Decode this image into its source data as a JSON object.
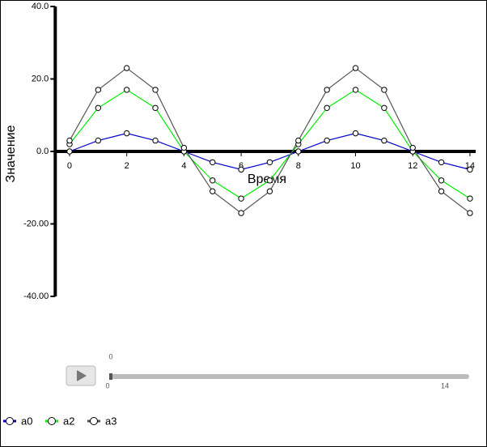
{
  "chart_data": {
    "type": "line",
    "x_label": "Время",
    "y_label": "Значение",
    "x": [
      0,
      1,
      2,
      3,
      4,
      5,
      6,
      7,
      8,
      9,
      10,
      11,
      12,
      13,
      14
    ],
    "series": [
      {
        "name": "a0",
        "color": "#0000cc",
        "values": [
          0,
          3,
          5,
          3,
          0,
          -3,
          -5,
          -3,
          0,
          3,
          5,
          3,
          0,
          -3,
          -5
        ]
      },
      {
        "name": "a2",
        "color": "#00ee00",
        "values": [
          2,
          12,
          17,
          12,
          0,
          -8,
          -13,
          -8,
          2,
          12,
          17,
          12,
          0,
          -8,
          -13
        ]
      },
      {
        "name": "a3",
        "color": "#555555",
        "values": [
          3,
          17,
          23,
          17,
          1,
          -11,
          -17,
          -11,
          3,
          17,
          23,
          17,
          1,
          -11,
          -17
        ]
      }
    ],
    "xlim": [
      -0.5,
      14.2
    ],
    "ylim": [
      -40,
      40
    ],
    "xticks": [
      0,
      2,
      4,
      6,
      8,
      10,
      12,
      14
    ],
    "yticks": [
      {
        "value": 40,
        "label": "40.0"
      },
      {
        "value": 20,
        "label": "20.0"
      },
      {
        "value": 0,
        "label": "0.0"
      },
      {
        "value": -20,
        "label": "-20.00"
      },
      {
        "value": -40,
        "label": "-40.00"
      }
    ],
    "slider": {
      "min": 0,
      "max": 14,
      "value": 0
    }
  }
}
